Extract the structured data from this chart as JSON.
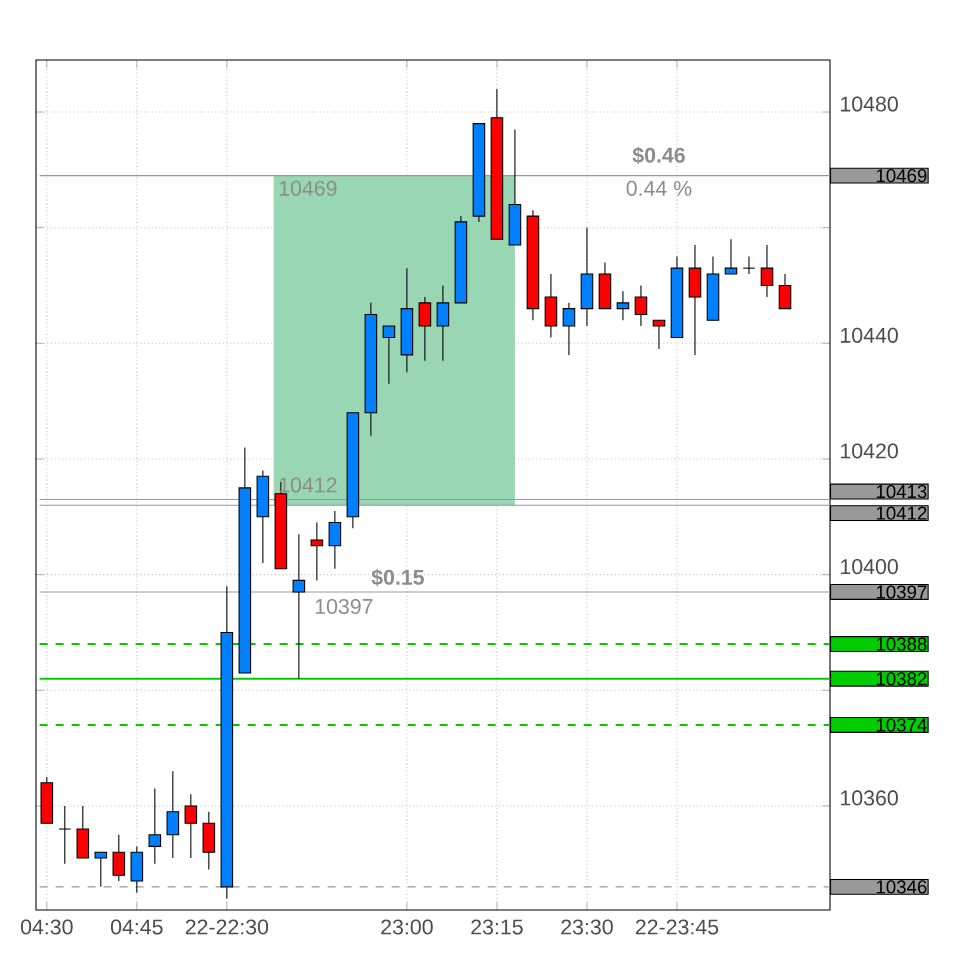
{
  "chart_data": {
    "type": "candlestick",
    "categories": [
      "04:30",
      null,
      null,
      null,
      null,
      "04:45",
      null,
      null,
      null,
      null,
      "22-22:30",
      null,
      null,
      null,
      null,
      null,
      null,
      null,
      null,
      null,
      "23:00",
      null,
      null,
      null,
      null,
      "23:15",
      null,
      null,
      null,
      null,
      "23:30",
      null,
      null,
      null,
      null,
      "22-23:45",
      null,
      null,
      null,
      null,
      null,
      null
    ],
    "ohlc": [
      [
        10364,
        10365,
        10357,
        10357
      ],
      [
        10356,
        10360,
        10350,
        10356
      ],
      [
        10356,
        10360,
        10351,
        10351
      ],
      [
        10351,
        10352,
        10346,
        10352
      ],
      [
        10352,
        10355,
        10347,
        10348
      ],
      [
        10347,
        10353,
        10345,
        10352
      ],
      [
        10353,
        10363,
        10350,
        10355
      ],
      [
        10355,
        10366,
        10351,
        10359
      ],
      [
        10360,
        10362,
        10351,
        10357
      ],
      [
        10357,
        10359,
        10349,
        10352
      ],
      [
        10346,
        10398,
        10344,
        10390
      ],
      [
        10383,
        10422,
        10383,
        10415
      ],
      [
        10410,
        10418,
        10402,
        10417
      ],
      [
        10414,
        10416,
        10401,
        10401
      ],
      [
        10397,
        10407,
        10382,
        10399
      ],
      [
        10406,
        10409,
        10399,
        10405
      ],
      [
        10405,
        10411,
        10401,
        10409
      ],
      [
        10410,
        10428,
        10408,
        10428
      ],
      [
        10428,
        10447,
        10424,
        10445
      ],
      [
        10441,
        10443,
        10433,
        10443
      ],
      [
        10438,
        10453,
        10435,
        10446
      ],
      [
        10447,
        10448,
        10437,
        10443
      ],
      [
        10443,
        10450,
        10437,
        10447
      ],
      [
        10447,
        10462,
        10447,
        10461
      ],
      [
        10462,
        10478,
        10461,
        10478
      ],
      [
        10479,
        10484,
        10458,
        10458
      ],
      [
        10457,
        10477,
        10457,
        10464
      ],
      [
        10462,
        10463,
        10444,
        10446
      ],
      [
        10448,
        10452,
        10441,
        10443
      ],
      [
        10443,
        10447,
        10438,
        10446
      ],
      [
        10446,
        10460,
        10443,
        10452
      ],
      [
        10452,
        10454,
        10446,
        10446
      ],
      [
        10446,
        10449,
        10444,
        10447
      ],
      [
        10448,
        10450,
        10443,
        10445
      ],
      [
        10444,
        10444,
        10439,
        10443
      ],
      [
        10441,
        10455,
        10441,
        10453
      ],
      [
        10453,
        10457,
        10438,
        10448
      ],
      [
        10444,
        10455,
        10444,
        10452
      ],
      [
        10452,
        10458,
        10452,
        10453
      ],
      [
        10453,
        10455,
        10452,
        10453
      ],
      [
        10453,
        10457,
        10448,
        10450
      ],
      [
        10450,
        10452,
        10446,
        10446
      ]
    ],
    "colors": [
      "#ff0000",
      "#000000",
      "#ff0000",
      "#0080ff",
      "#ff0000",
      "#0080ff",
      "#0080ff",
      "#0080ff",
      "#ff0000",
      "#ff0000",
      "#0080ff",
      "#0080ff",
      "#0080ff",
      "#ff0000",
      "#0080ff",
      "#ff0000",
      "#0080ff",
      "#0080ff",
      "#0080ff",
      "#0080ff",
      "#0080ff",
      "#ff0000",
      "#0080ff",
      "#0080ff",
      "#0080ff",
      "#ff0000",
      "#0080ff",
      "#ff0000",
      "#ff0000",
      "#0080ff",
      "#0080ff",
      "#ff0000",
      "#0080ff",
      "#ff0000",
      "#ff0000",
      "#0080ff",
      "#ff0000",
      "#0080ff",
      "#0080ff",
      "#000000",
      "#ff0000",
      "#ff0000"
    ],
    "ylim": [
      10342,
      10489
    ],
    "yticks": [
      10360,
      {
        "value": 10380,
        "label": null
      },
      10400,
      10420,
      10440,
      {
        "value": 10460,
        "label": null
      },
      10480
    ],
    "grid": true,
    "ref_lines": [
      {
        "axis": "y",
        "value": 10469,
        "label": "10469",
        "color": "#999999",
        "line_style": "solid"
      },
      {
        "axis": "y",
        "value": 10413,
        "label": "10413",
        "color": "#999999",
        "line_style": "solid"
      },
      {
        "axis": "y",
        "value": 10412,
        "label": "10412",
        "color": "#999999",
        "line_style": "solid"
      },
      {
        "axis": "y",
        "value": 10397,
        "label": "10397",
        "color": "#999999",
        "line_style": "solid"
      },
      {
        "axis": "y",
        "value": 10388,
        "label": "10388",
        "color": "#00cc00",
        "line_style": "dashed"
      },
      {
        "axis": "y",
        "value": 10382,
        "label": "10382",
        "color": "#00cc00",
        "line_style": "solid"
      },
      {
        "axis": "y",
        "value": 10374,
        "label": "10374",
        "color": "#00cc00",
        "line_style": "dashed"
      },
      {
        "axis": "y",
        "value": 10346,
        "label": "10346",
        "color": "#999999",
        "line_style": "dashed"
      }
    ],
    "bands": [
      {
        "axis": "y",
        "from": 10412,
        "to": 10469,
        "color": "#99d6b3"
      }
    ],
    "annotations": [
      "$0.46",
      "0.44 %",
      "$0.15",
      "10469",
      "10412",
      "10397"
    ]
  }
}
